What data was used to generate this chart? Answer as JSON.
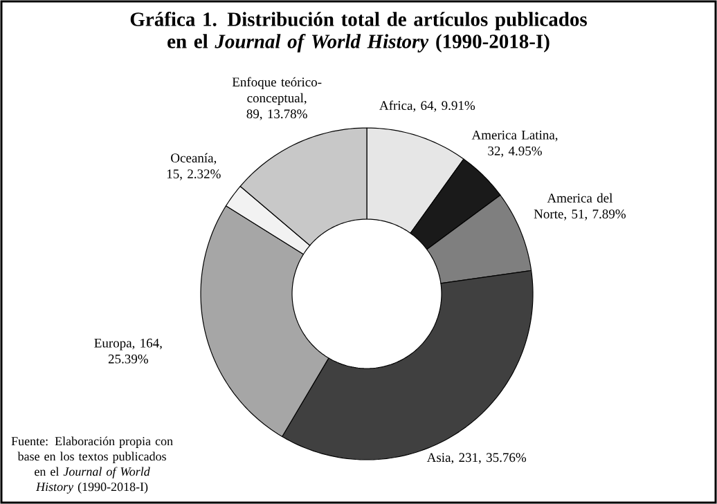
{
  "chart_data": {
    "type": "donut",
    "title": "Gráfica 1. Distribución total de artículos publicados en el *Journal of World History* (1990-2018-I)",
    "categories": [
      "Africa",
      "America Latina",
      "America del Norte",
      "Asia",
      "Europa",
      "Oceanía",
      "Enfoque teórico-conceptual"
    ],
    "values": [
      64,
      32,
      51,
      231,
      164,
      15,
      89
    ],
    "value_labels": [
      ", 64, 9.91%",
      ", 32, 4.95%",
      ", 51, 7.89%",
      ", 231, 35.76%",
      ", 164, 25.39%",
      ", 15, 2.32%",
      ", 89, 13.78%"
    ],
    "colors": [
      "#e6e6e6",
      "#1a1a1a",
      "#7f7f7f",
      "#404040",
      "#a6a6a6",
      "#f2f2f2",
      "#c8c8c8"
    ],
    "annotations": [
      "Fuente: Elaboración propia con base en los textos publicados en el *Journal of World History* (1990-2018-I)"
    ]
  }
}
